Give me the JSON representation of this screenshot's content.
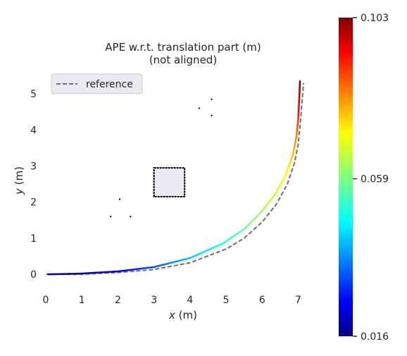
{
  "chart_data": {
    "type": "line",
    "title": "APE w.r.t. translation part (m)",
    "subtitle": "(not aligned)",
    "xlabel_var": "x",
    "xlabel_unit": "(m)",
    "ylabel_var": "y",
    "ylabel_unit": "(m)",
    "xlim": [
      0,
      7.4
    ],
    "ylim": [
      -0.35,
      5.55
    ],
    "xticks": [
      "0",
      "1",
      "2",
      "3",
      "4",
      "5",
      "6",
      "7"
    ],
    "yticks": [
      "0",
      "1",
      "2",
      "3",
      "4",
      "5"
    ],
    "grid": false,
    "legend": {
      "entries": [
        "reference"
      ],
      "placement": "top-left"
    },
    "reference_series": {
      "name": "reference",
      "style": "dashed",
      "color": "#6e6e6e",
      "x": [
        0.05,
        1.0,
        2.0,
        3.0,
        4.0,
        5.0,
        5.5,
        6.0,
        6.4,
        6.7,
        6.9,
        7.0,
        7.05,
        7.1,
        7.15
      ],
      "y": [
        0.0,
        0.0,
        0.05,
        0.13,
        0.32,
        0.7,
        1.0,
        1.45,
        1.95,
        2.5,
        3.1,
        3.6,
        4.1,
        4.7,
        5.3
      ]
    },
    "ape_series": {
      "x": [
        0.05,
        1.0,
        2.0,
        3.0,
        4.0,
        4.9,
        5.5,
        5.95,
        6.35,
        6.65,
        6.85,
        6.95,
        7.0,
        7.03,
        7.05
      ],
      "y": [
        0.0,
        0.02,
        0.08,
        0.2,
        0.45,
        0.85,
        1.25,
        1.7,
        2.2,
        2.75,
        3.3,
        3.8,
        4.3,
        4.9,
        5.35
      ],
      "error": [
        0.018,
        0.021,
        0.026,
        0.034,
        0.044,
        0.051,
        0.058,
        0.062,
        0.066,
        0.07,
        0.075,
        0.08,
        0.088,
        0.097,
        0.103
      ]
    },
    "colorbar": {
      "colormap": "jet",
      "min": 0.016,
      "max": 0.103,
      "ticks": [
        "0.016",
        "0.059",
        "0.103"
      ],
      "tick_values": [
        0.016,
        0.059,
        0.103
      ]
    },
    "obstacles": [
      {
        "type": "square",
        "x0": 3.0,
        "y0": 2.15,
        "x1": 3.85,
        "y1": 2.95
      },
      {
        "type": "dots",
        "points": [
          [
            4.25,
            4.6
          ],
          [
            4.6,
            4.85
          ],
          [
            4.6,
            4.4
          ],
          [
            2.05,
            2.08
          ],
          [
            1.8,
            1.6
          ],
          [
            2.35,
            1.6
          ]
        ]
      }
    ],
    "colors": {
      "background": "#ffffff",
      "plot_area": "#ffffff",
      "legend_box": "#eaeaf2",
      "obstacle_fill": "#eaeaf2",
      "obstacle_edge": "#000000"
    }
  }
}
